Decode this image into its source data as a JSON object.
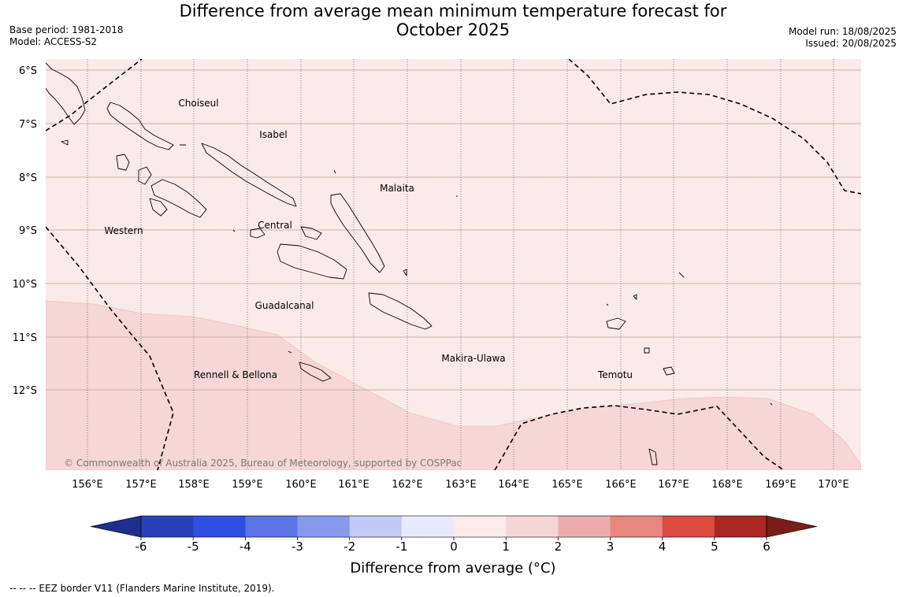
{
  "header": {
    "title_line1": "Difference from average mean minimum temperature forecast for",
    "title_line2": "October 2025",
    "base_period": "Base period: 1981-2018",
    "model": "Model: ACCESS-S2",
    "model_run": "Model run: 18/08/2025",
    "issued": "Issued: 20/08/2025"
  },
  "map": {
    "lon_labels": [
      "156°E",
      "157°E",
      "158°E",
      "159°E",
      "160°E",
      "161°E",
      "162°E",
      "163°E",
      "164°E",
      "165°E",
      "166°E",
      "167°E",
      "168°E",
      "169°E",
      "170°E"
    ],
    "lat_labels": [
      "6°S",
      "7°S",
      "8°S",
      "9°S",
      "10°S",
      "11°S",
      "12°S"
    ],
    "regions": {
      "choiseul": "Choiseul",
      "isabel": "Isabel",
      "malaita": "Malaita",
      "western": "Western",
      "central": "Central",
      "guadalcanal": "Guadalcanal",
      "makira": "Makira-Ulawa",
      "rennell": "Rennell & Bellona",
      "temotu": "Temotu"
    },
    "copyright": "© Commonwealth of Australia 2025, Bureau of Meteorology, supported by COSPPac",
    "fill_colors": {
      "band_0_1": "#fbeaea",
      "band_1_2": "#f6d6d6"
    }
  },
  "colorbar": {
    "title": "Difference from average (°C)",
    "ticks": [
      "-6",
      "-5",
      "-4",
      "-3",
      "-2",
      "-1",
      "0",
      "1",
      "2",
      "3",
      "4",
      "5",
      "6"
    ],
    "colors": [
      "#1d2f8f",
      "#2a40b7",
      "#2e4fe0",
      "#5a73e6",
      "#8799ec",
      "#c2cbf4",
      "#e8ebfb",
      "#fdeaea",
      "#f6d5d5",
      "#eeadad",
      "#e7877f",
      "#dc4a40",
      "#ab2722",
      "#7b1e1a"
    ]
  },
  "footnote": "--  --  -- EEZ border V11 (Flanders Marine Institute, 2019)."
}
